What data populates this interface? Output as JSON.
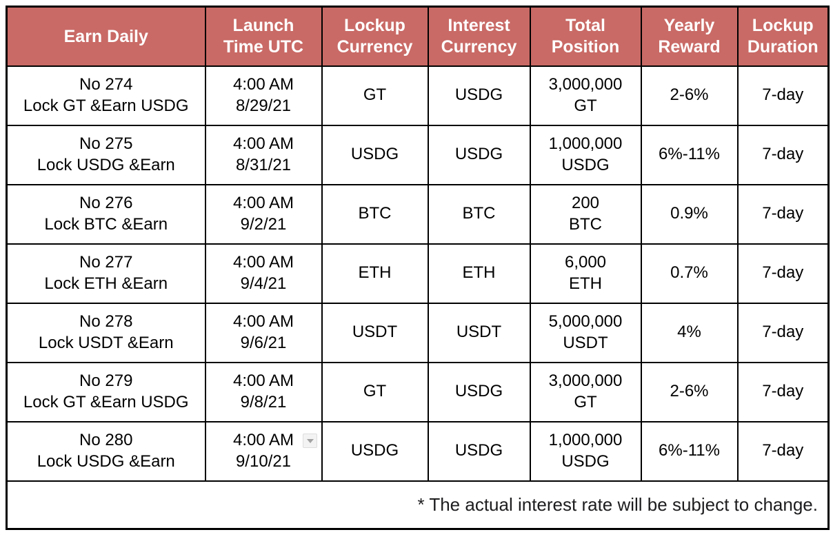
{
  "chart_data": {
    "type": "table",
    "title": "",
    "columns": [
      "Earn Daily",
      "Launch\nTime UTC",
      "Lockup\nCurrency",
      "Interest\nCurrency",
      "Total\nPosition",
      "Yearly\nReward",
      "Lockup\nDuration"
    ],
    "rows": [
      [
        "No 274\nLock GT &Earn USDG",
        "4:00 AM\n8/29/21",
        "GT",
        "USDG",
        "3,000,000\nGT",
        "2-6%",
        "7-day"
      ],
      [
        "No 275\nLock USDG &Earn",
        "4:00 AM\n8/31/21",
        "USDG",
        "USDG",
        "1,000,000\nUSDG",
        "6%-11%",
        "7-day"
      ],
      [
        "No 276\nLock BTC &Earn",
        "4:00 AM\n9/2/21",
        "BTC",
        "BTC",
        "200\nBTC",
        "0.9%",
        "7-day"
      ],
      [
        "No 277\nLock ETH &Earn",
        "4:00 AM\n9/4/21",
        "ETH",
        "ETH",
        "6,000\nETH",
        "0.7%",
        "7-day"
      ],
      [
        "No 278\nLock USDT &Earn",
        "4:00 AM\n9/6/21",
        "USDT",
        "USDT",
        "5,000,000\nUSDT",
        "4%",
        "7-day"
      ],
      [
        "No 279\nLock GT &Earn USDG",
        "4:00 AM\n9/8/21",
        "GT",
        "USDG",
        "3,000,000\nGT",
        "2-6%",
        "7-day"
      ],
      [
        "No 280\nLock USDG &Earn",
        "4:00 AM\n9/10/21",
        "USDG",
        "USDG",
        "1,000,000\nUSDG",
        "6%-11%",
        "7-day"
      ]
    ],
    "footnote": "* The actual interest rate will be subject to change.",
    "layout": {
      "grid": "all-borders",
      "header_row": true,
      "footnote_alignment": "right"
    }
  },
  "ui": {
    "colors": {
      "header_background": "#C96A66",
      "header_text": "#FFFFFF",
      "cell_text": "#000000",
      "border": "#000000",
      "page_background": "#FFFFFF",
      "dropdown_background": "#F3F3F3",
      "dropdown_glyph": "#A3A3A3"
    },
    "icons": {
      "dropdown_arrow": "▾"
    }
  }
}
